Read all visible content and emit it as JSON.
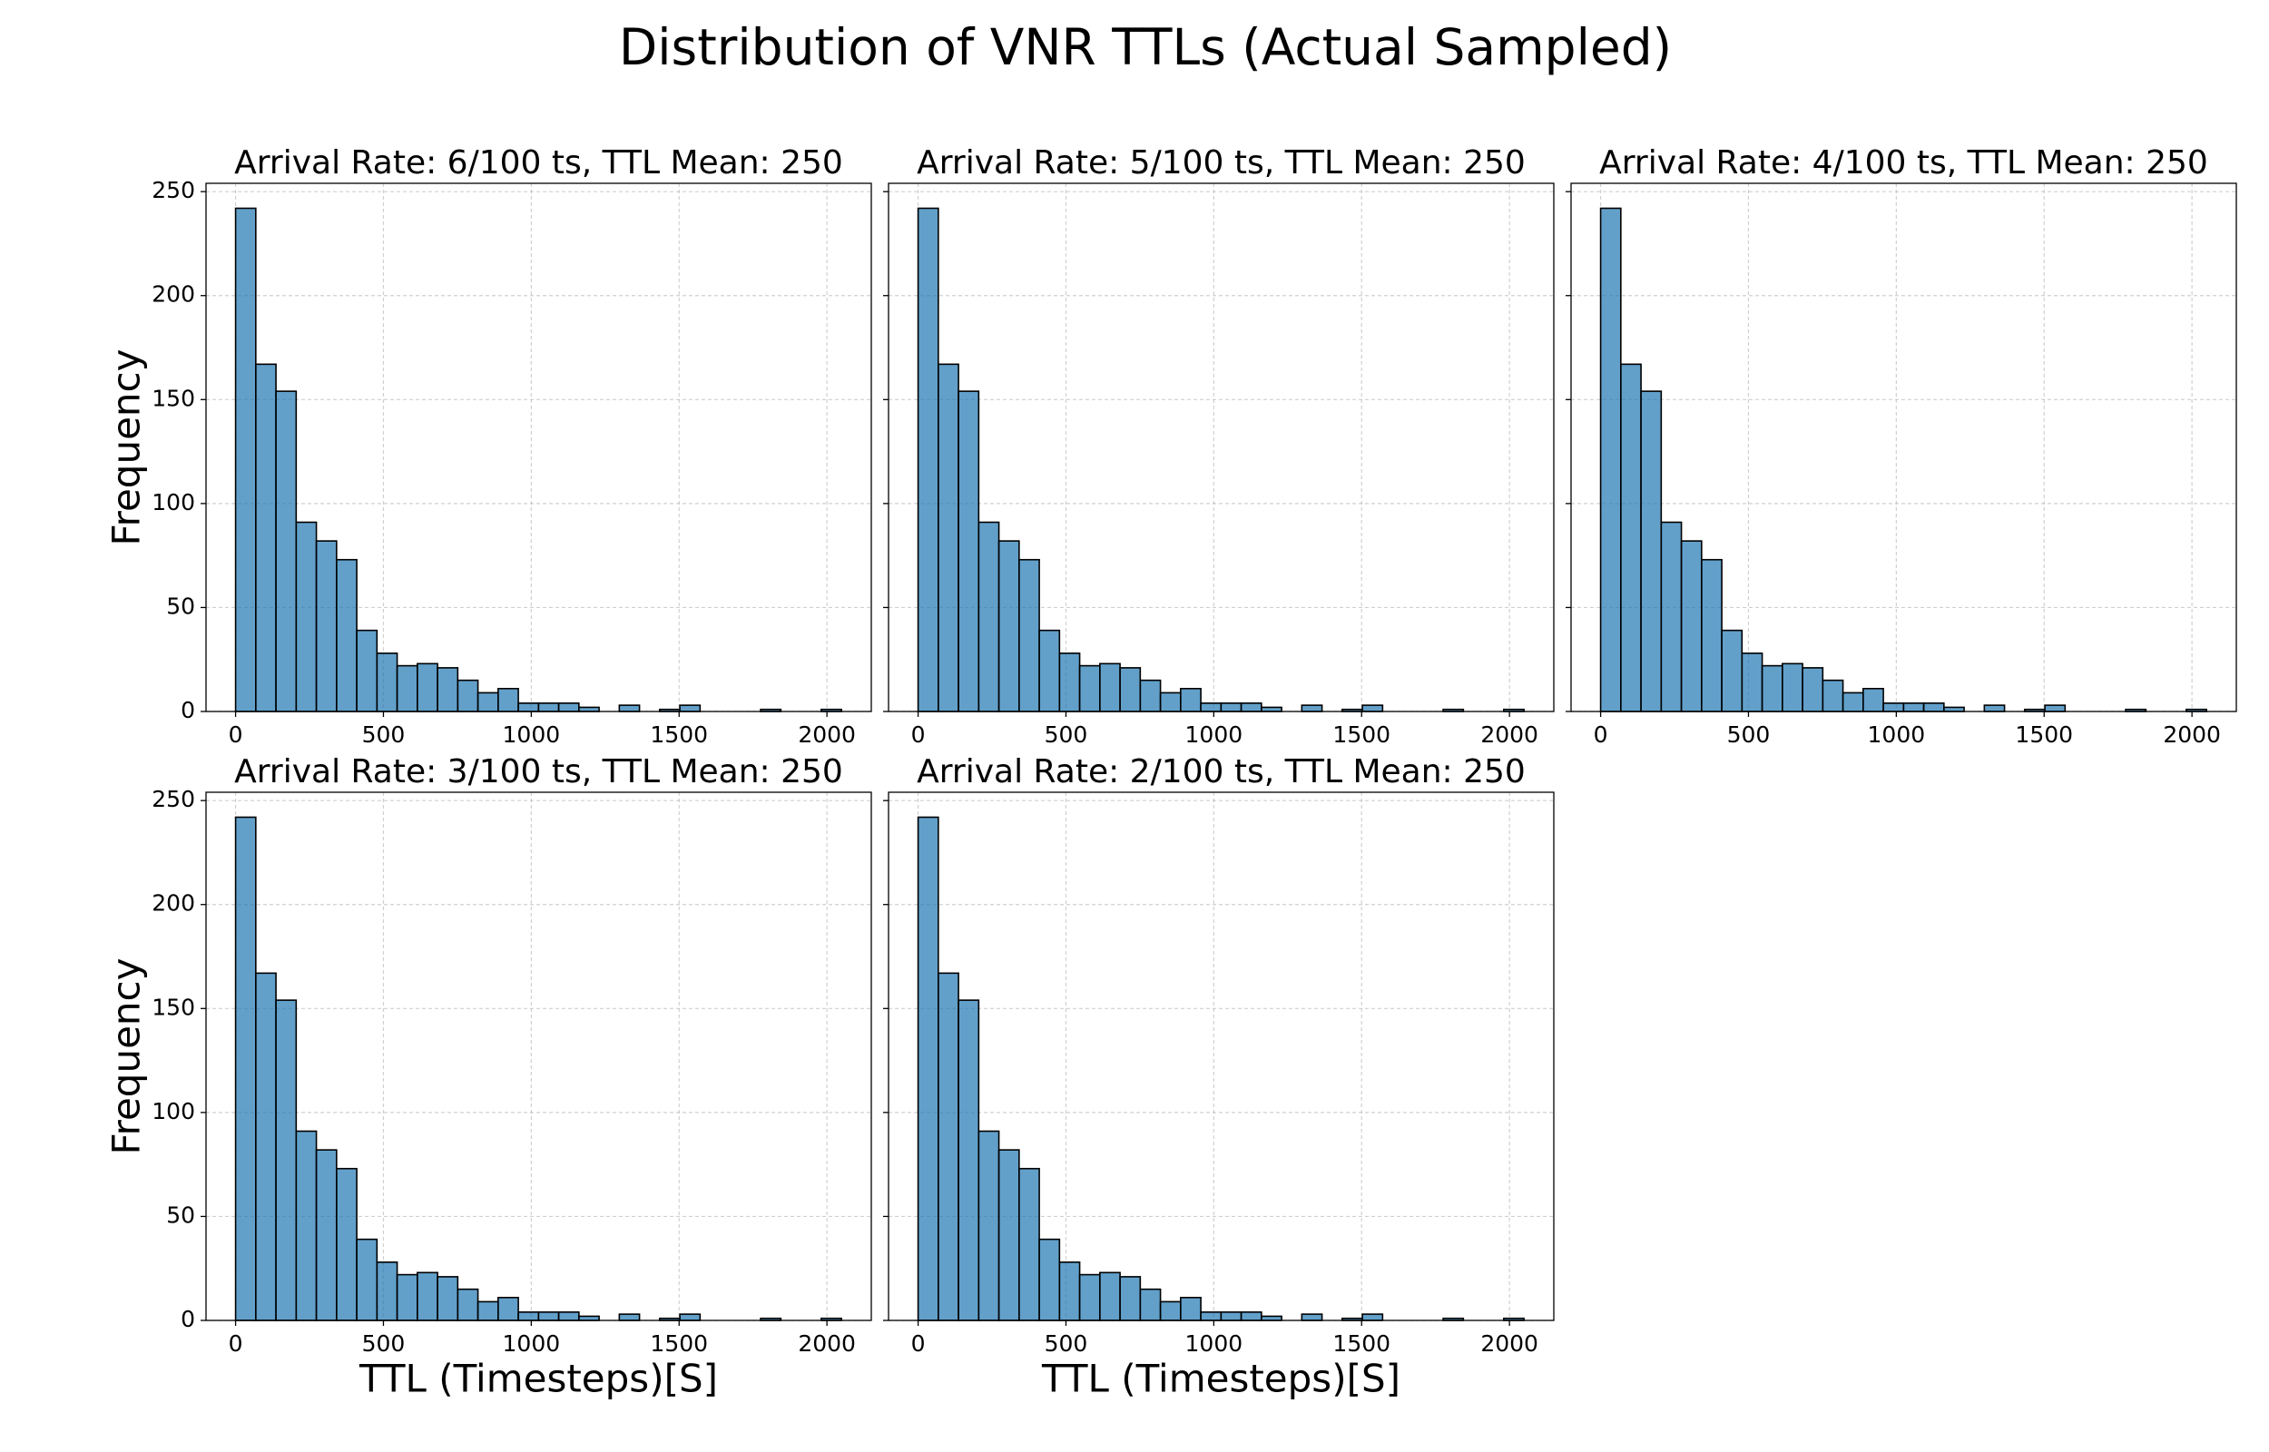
{
  "title": "Distribution of VNR TTLs (Actual Sampled)",
  "chart_data": [
    {
      "type": "histogram",
      "title": "Arrival Rate: 6/100 ts, TTL Mean: 250",
      "ylabel": "Frequency",
      "bins": [
        0,
        68.3,
        136.6,
        204.9,
        273.2,
        341.5,
        409.8,
        478.1,
        546.4,
        614.7,
        683,
        751.3,
        819.6,
        887.9,
        956.2,
        1024.5,
        1092.8,
        1161.1,
        1229.4,
        1297.7,
        1366,
        1434.3,
        1502.6,
        1570.9,
        1639.2,
        1707.5,
        1775.8,
        1844.1,
        1912.4,
        1980.7,
        2049
      ],
      "values": [
        242,
        167,
        154,
        91,
        82,
        73,
        39,
        28,
        22,
        23,
        21,
        15,
        9,
        11,
        4,
        4,
        4,
        2,
        0,
        3,
        0,
        1,
        3,
        0,
        0,
        0,
        1,
        0,
        0,
        1
      ],
      "color": "#1f77b4",
      "xlim": [
        -100,
        2150
      ],
      "ylim": [
        0,
        254
      ],
      "xticks": [
        0,
        500,
        1000,
        1500,
        2000
      ],
      "yticks": [
        0,
        50,
        100,
        150,
        200,
        250
      ],
      "grid": true
    },
    {
      "type": "histogram",
      "title": "Arrival Rate: 5/100 ts, TTL Mean: 250",
      "bins": [
        0,
        68.3,
        136.6,
        204.9,
        273.2,
        341.5,
        409.8,
        478.1,
        546.4,
        614.7,
        683,
        751.3,
        819.6,
        887.9,
        956.2,
        1024.5,
        1092.8,
        1161.1,
        1229.4,
        1297.7,
        1366,
        1434.3,
        1502.6,
        1570.9,
        1639.2,
        1707.5,
        1775.8,
        1844.1,
        1912.4,
        1980.7,
        2049
      ],
      "values": [
        242,
        167,
        154,
        91,
        82,
        73,
        39,
        28,
        22,
        23,
        21,
        15,
        9,
        11,
        4,
        4,
        4,
        2,
        0,
        3,
        0,
        1,
        3,
        0,
        0,
        0,
        1,
        0,
        0,
        1
      ],
      "color": "#1f77b4",
      "xlim": [
        -100,
        2150
      ],
      "ylim": [
        0,
        254
      ],
      "xticks": [
        0,
        500,
        1000,
        1500,
        2000
      ],
      "grid": true
    },
    {
      "type": "histogram",
      "title": "Arrival Rate: 4/100 ts, TTL Mean: 250",
      "bins": [
        0,
        68.3,
        136.6,
        204.9,
        273.2,
        341.5,
        409.8,
        478.1,
        546.4,
        614.7,
        683,
        751.3,
        819.6,
        887.9,
        956.2,
        1024.5,
        1092.8,
        1161.1,
        1229.4,
        1297.7,
        1366,
        1434.3,
        1502.6,
        1570.9,
        1639.2,
        1707.5,
        1775.8,
        1844.1,
        1912.4,
        1980.7,
        2049
      ],
      "values": [
        242,
        167,
        154,
        91,
        82,
        73,
        39,
        28,
        22,
        23,
        21,
        15,
        9,
        11,
        4,
        4,
        4,
        2,
        0,
        3,
        0,
        1,
        3,
        0,
        0,
        0,
        1,
        0,
        0,
        1
      ],
      "color": "#1f77b4",
      "xlim": [
        -100,
        2150
      ],
      "ylim": [
        0,
        254
      ],
      "xticks": [
        0,
        500,
        1000,
        1500,
        2000
      ],
      "grid": true
    },
    {
      "type": "histogram",
      "title": "Arrival Rate: 3/100 ts, TTL Mean: 250",
      "ylabel": "Frequency",
      "xlabel": "TTL (Timesteps)[S]",
      "bins": [
        0,
        68.3,
        136.6,
        204.9,
        273.2,
        341.5,
        409.8,
        478.1,
        546.4,
        614.7,
        683,
        751.3,
        819.6,
        887.9,
        956.2,
        1024.5,
        1092.8,
        1161.1,
        1229.4,
        1297.7,
        1366,
        1434.3,
        1502.6,
        1570.9,
        1639.2,
        1707.5,
        1775.8,
        1844.1,
        1912.4,
        1980.7,
        2049
      ],
      "values": [
        242,
        167,
        154,
        91,
        82,
        73,
        39,
        28,
        22,
        23,
        21,
        15,
        9,
        11,
        4,
        4,
        4,
        2,
        0,
        3,
        0,
        1,
        3,
        0,
        0,
        0,
        1,
        0,
        0,
        1
      ],
      "color": "#1f77b4",
      "xlim": [
        -100,
        2150
      ],
      "ylim": [
        0,
        254
      ],
      "xticks": [
        0,
        500,
        1000,
        1500,
        2000
      ],
      "yticks": [
        0,
        50,
        100,
        150,
        200,
        250
      ],
      "grid": true
    },
    {
      "type": "histogram",
      "title": "Arrival Rate: 2/100 ts, TTL Mean: 250",
      "xlabel": "TTL (Timesteps)[S]",
      "bins": [
        0,
        68.3,
        136.6,
        204.9,
        273.2,
        341.5,
        409.8,
        478.1,
        546.4,
        614.7,
        683,
        751.3,
        819.6,
        887.9,
        956.2,
        1024.5,
        1092.8,
        1161.1,
        1229.4,
        1297.7,
        1366,
        1434.3,
        1502.6,
        1570.9,
        1639.2,
        1707.5,
        1775.8,
        1844.1,
        1912.4,
        1980.7,
        2049
      ],
      "values": [
        242,
        167,
        154,
        91,
        82,
        73,
        39,
        28,
        22,
        23,
        21,
        15,
        9,
        11,
        4,
        4,
        4,
        2,
        0,
        3,
        0,
        1,
        3,
        0,
        0,
        0,
        1,
        0,
        0,
        1
      ],
      "color": "#1f77b4",
      "xlim": [
        -100,
        2150
      ],
      "ylim": [
        0,
        254
      ],
      "xticks": [
        0,
        500,
        1000,
        1500,
        2000
      ],
      "grid": true
    }
  ]
}
